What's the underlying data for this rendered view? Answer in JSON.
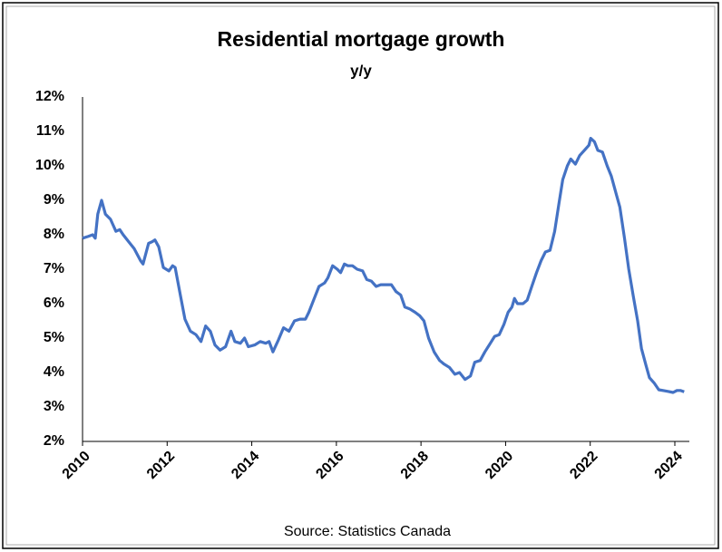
{
  "chart_data": {
    "type": "line",
    "title": "Residential mortgage growth",
    "subtitle": "y/y",
    "source": "Source:  Statistics Canada",
    "xlim": [
      2010,
      2024
    ],
    "xticks": [
      2010,
      2012,
      2014,
      2016,
      2018,
      2020,
      2022,
      2024
    ],
    "ylim": [
      2,
      12
    ],
    "yticks": [
      {
        "value": 2,
        "label": "2%"
      },
      {
        "value": 3,
        "label": "3%"
      },
      {
        "value": 4,
        "label": "4%"
      },
      {
        "value": 5,
        "label": "5%"
      },
      {
        "value": 6,
        "label": "6%"
      },
      {
        "value": 7,
        "label": "7%"
      },
      {
        "value": 8,
        "label": "8%"
      },
      {
        "value": 9,
        "label": "9%"
      },
      {
        "value": 10,
        "label": "10%"
      },
      {
        "value": 11,
        "label": "11%"
      },
      {
        "value": 12,
        "label": "12%"
      }
    ],
    "grid": false,
    "x": [
      2010.0,
      2010.13,
      2010.24,
      2010.3,
      2010.36,
      2010.45,
      2010.54,
      2010.66,
      2010.79,
      2010.88,
      2010.96,
      2011.09,
      2011.22,
      2011.37,
      2011.43,
      2011.56,
      2011.65,
      2011.71,
      2011.8,
      2011.91,
      2012.04,
      2012.13,
      2012.19,
      2012.32,
      2012.42,
      2012.55,
      2012.68,
      2012.8,
      2012.91,
      2013.02,
      2013.13,
      2013.25,
      2013.38,
      2013.51,
      2013.6,
      2013.73,
      2013.83,
      2013.92,
      2014.07,
      2014.2,
      2014.33,
      2014.41,
      2014.5,
      2014.63,
      2014.75,
      2014.88,
      2015.01,
      2015.14,
      2015.27,
      2015.35,
      2015.46,
      2015.59,
      2015.72,
      2015.8,
      2015.91,
      2016.02,
      2016.1,
      2016.19,
      2016.27,
      2016.38,
      2016.49,
      2016.62,
      2016.72,
      2016.83,
      2016.94,
      2017.05,
      2017.2,
      2017.3,
      2017.41,
      2017.52,
      2017.62,
      2017.73,
      2017.86,
      2017.97,
      2018.07,
      2018.18,
      2018.31,
      2018.44,
      2018.54,
      2018.67,
      2018.8,
      2018.91,
      2019.04,
      2019.17,
      2019.27,
      2019.4,
      2019.51,
      2019.64,
      2019.74,
      2019.85,
      2019.96,
      2020.06,
      2020.15,
      2020.21,
      2020.28,
      2020.41,
      2020.51,
      2020.62,
      2020.73,
      2020.84,
      2020.94,
      2021.05,
      2021.16,
      2021.26,
      2021.35,
      2021.46,
      2021.54,
      2021.65,
      2021.75,
      2021.86,
      2021.97,
      2022.01,
      2022.1,
      2022.18,
      2022.29,
      2022.4,
      2022.5,
      2022.61,
      2022.7,
      2022.81,
      2022.91,
      2023.02,
      2023.12,
      2023.21,
      2023.32,
      2023.4,
      2023.51,
      2023.62,
      2023.75,
      2023.85,
      2023.96,
      2024.05,
      2024.13,
      2024.22
    ],
    "series": [
      {
        "name": "Residential mortgage growth",
        "color": "#4472c4",
        "values": [
          7.9,
          7.95,
          8.0,
          7.9,
          8.6,
          9.0,
          8.6,
          8.45,
          8.1,
          8.15,
          8.0,
          7.8,
          7.6,
          7.25,
          7.15,
          7.75,
          7.8,
          7.85,
          7.65,
          7.05,
          6.95,
          7.1,
          7.05,
          6.2,
          5.55,
          5.2,
          5.1,
          4.9,
          5.35,
          5.2,
          4.8,
          4.65,
          4.75,
          5.2,
          4.9,
          4.85,
          5.0,
          4.75,
          4.8,
          4.9,
          4.85,
          4.9,
          4.6,
          4.95,
          5.3,
          5.2,
          5.5,
          5.55,
          5.55,
          5.75,
          6.1,
          6.5,
          6.6,
          6.75,
          7.1,
          7.0,
          6.9,
          7.15,
          7.1,
          7.1,
          7.0,
          6.95,
          6.7,
          6.65,
          6.5,
          6.55,
          6.55,
          6.55,
          6.35,
          6.25,
          5.9,
          5.85,
          5.75,
          5.65,
          5.5,
          5.0,
          4.6,
          4.35,
          4.25,
          4.15,
          3.95,
          4.0,
          3.8,
          3.9,
          4.3,
          4.35,
          4.6,
          4.85,
          5.05,
          5.1,
          5.4,
          5.75,
          5.9,
          6.15,
          6.0,
          6.0,
          6.1,
          6.5,
          6.9,
          7.25,
          7.5,
          7.55,
          8.1,
          8.9,
          9.6,
          10.0,
          10.2,
          10.05,
          10.3,
          10.45,
          10.6,
          10.8,
          10.7,
          10.45,
          10.4,
          10.0,
          9.7,
          9.2,
          8.8,
          7.9,
          7.0,
          6.2,
          5.5,
          4.7,
          4.2,
          3.85,
          3.7,
          3.5,
          3.47,
          3.45,
          3.42,
          3.48,
          3.48,
          3.44
        ]
      }
    ]
  }
}
